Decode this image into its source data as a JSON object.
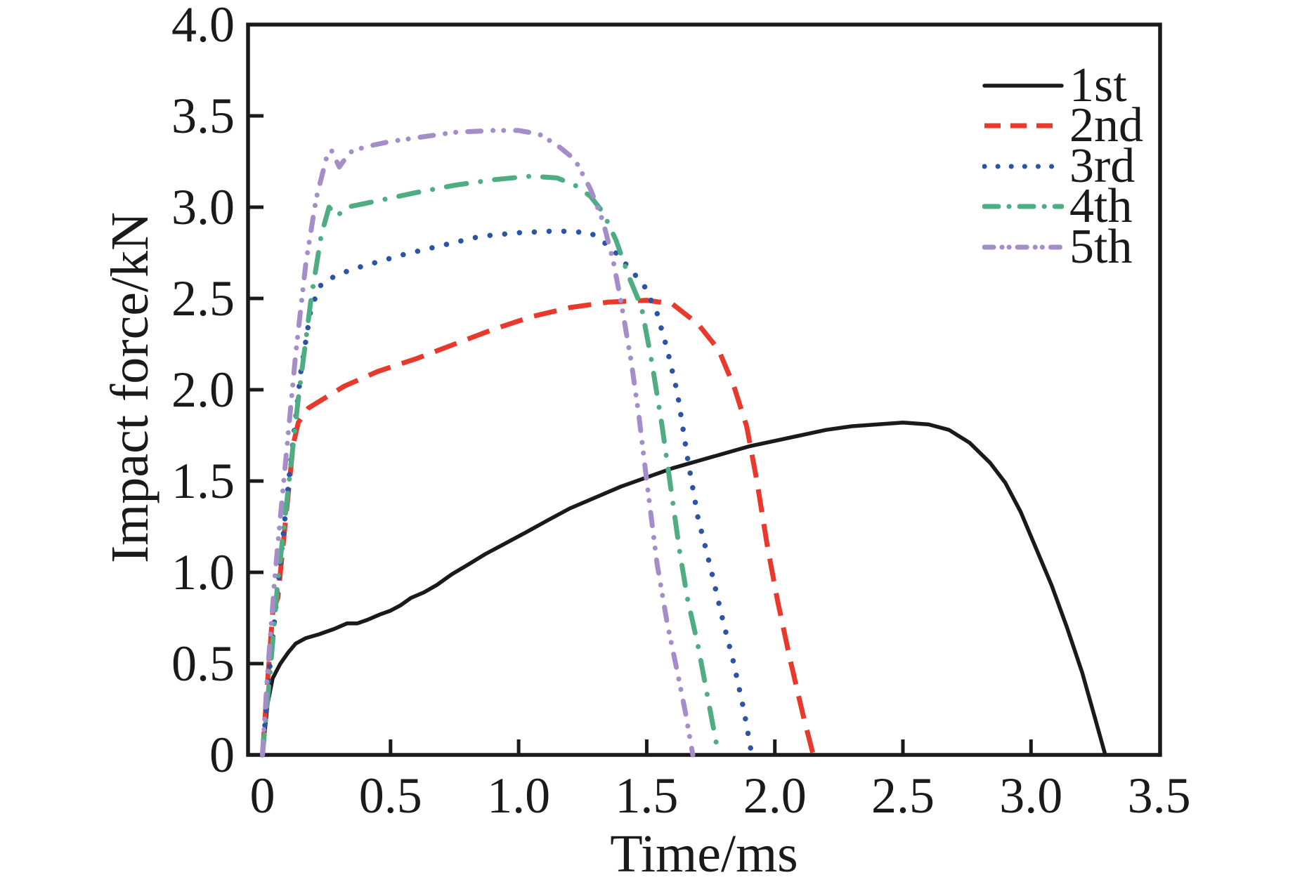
{
  "figure": {
    "background": "#ffffff",
    "frame_color": "#1a1a1a"
  },
  "axes": {
    "x_ticks": [
      "0",
      "0.5",
      "1.0",
      "1.5",
      "2.0",
      "2.5",
      "3.0",
      "3.5"
    ],
    "x_tick_values": [
      0,
      0.5,
      1.0,
      1.5,
      2.0,
      2.5,
      3.0,
      3.5
    ],
    "y_ticks": [
      "0",
      "0.5",
      "1.0",
      "1.5",
      "2.0",
      "2.5",
      "3.0",
      "3.5",
      "4.0"
    ],
    "y_tick_values": [
      0,
      0.5,
      1.0,
      1.5,
      2.0,
      2.5,
      3.0,
      3.5,
      4.0
    ]
  },
  "chart_data": {
    "type": "line",
    "title": "",
    "xlabel": "Time/ms",
    "ylabel": "Impact force/kN",
    "xlim": [
      -0.06,
      3.5
    ],
    "ylim": [
      0,
      4.0
    ],
    "grid": false,
    "legend_position": "upper right",
    "series": [
      {
        "name": "1st",
        "color": "#1a1a1a",
        "style": "solid",
        "peak_kN": 1.82,
        "end_ms": 3.29,
        "points": [
          [
            0,
            0
          ],
          [
            0.02,
            0.28
          ],
          [
            0.04,
            0.42
          ],
          [
            0.07,
            0.5
          ],
          [
            0.1,
            0.56
          ],
          [
            0.13,
            0.61
          ],
          [
            0.17,
            0.64
          ],
          [
            0.22,
            0.66
          ],
          [
            0.28,
            0.69
          ],
          [
            0.33,
            0.72
          ],
          [
            0.37,
            0.72
          ],
          [
            0.41,
            0.74
          ],
          [
            0.46,
            0.77
          ],
          [
            0.5,
            0.79
          ],
          [
            0.54,
            0.82
          ],
          [
            0.58,
            0.86
          ],
          [
            0.63,
            0.89
          ],
          [
            0.68,
            0.93
          ],
          [
            0.74,
            0.99
          ],
          [
            0.8,
            1.04
          ],
          [
            0.87,
            1.1
          ],
          [
            0.95,
            1.16
          ],
          [
            1.03,
            1.22
          ],
          [
            1.12,
            1.29
          ],
          [
            1.2,
            1.35
          ],
          [
            1.3,
            1.41
          ],
          [
            1.4,
            1.47
          ],
          [
            1.5,
            1.52
          ],
          [
            1.6,
            1.57
          ],
          [
            1.7,
            1.61
          ],
          [
            1.8,
            1.65
          ],
          [
            1.9,
            1.69
          ],
          [
            2.0,
            1.72
          ],
          [
            2.1,
            1.75
          ],
          [
            2.2,
            1.78
          ],
          [
            2.3,
            1.8
          ],
          [
            2.4,
            1.81
          ],
          [
            2.5,
            1.82
          ],
          [
            2.6,
            1.81
          ],
          [
            2.68,
            1.78
          ],
          [
            2.76,
            1.71
          ],
          [
            2.84,
            1.6
          ],
          [
            2.9,
            1.49
          ],
          [
            2.96,
            1.33
          ],
          [
            3.02,
            1.13
          ],
          [
            3.08,
            0.93
          ],
          [
            3.14,
            0.7
          ],
          [
            3.2,
            0.45
          ],
          [
            3.25,
            0.2
          ],
          [
            3.29,
            0
          ]
        ]
      },
      {
        "name": "2nd",
        "color": "#e8392c",
        "style": "dashed",
        "peak_kN": 2.49,
        "end_ms": 2.15,
        "points": [
          [
            0,
            0
          ],
          [
            0.02,
            0.4
          ],
          [
            0.04,
            0.78
          ],
          [
            0.06,
            0.86
          ],
          [
            0.09,
            1.28
          ],
          [
            0.12,
            1.7
          ],
          [
            0.14,
            1.82
          ],
          [
            0.18,
            1.9
          ],
          [
            0.25,
            1.96
          ],
          [
            0.32,
            2.02
          ],
          [
            0.45,
            2.1
          ],
          [
            0.6,
            2.17
          ],
          [
            0.75,
            2.25
          ],
          [
            0.9,
            2.33
          ],
          [
            1.05,
            2.4
          ],
          [
            1.2,
            2.45
          ],
          [
            1.35,
            2.48
          ],
          [
            1.5,
            2.49
          ],
          [
            1.6,
            2.47
          ],
          [
            1.7,
            2.36
          ],
          [
            1.78,
            2.22
          ],
          [
            1.84,
            2.02
          ],
          [
            1.89,
            1.8
          ],
          [
            1.93,
            1.5
          ],
          [
            1.97,
            1.15
          ],
          [
            2.01,
            0.85
          ],
          [
            2.06,
            0.52
          ],
          [
            2.11,
            0.22
          ],
          [
            2.15,
            0
          ]
        ]
      },
      {
        "name": "3rd",
        "color": "#2b54a5",
        "style": "dotted",
        "peak_kN": 2.87,
        "end_ms": 1.91,
        "points": [
          [
            0,
            0
          ],
          [
            0.03,
            0.5
          ],
          [
            0.07,
            1.05
          ],
          [
            0.11,
            1.6
          ],
          [
            0.15,
            2.1
          ],
          [
            0.19,
            2.45
          ],
          [
            0.23,
            2.58
          ],
          [
            0.28,
            2.62
          ],
          [
            0.35,
            2.66
          ],
          [
            0.45,
            2.7
          ],
          [
            0.55,
            2.74
          ],
          [
            0.7,
            2.79
          ],
          [
            0.85,
            2.84
          ],
          [
            1.0,
            2.86
          ],
          [
            1.15,
            2.87
          ],
          [
            1.28,
            2.86
          ],
          [
            1.36,
            2.78
          ],
          [
            1.43,
            2.67
          ],
          [
            1.49,
            2.57
          ],
          [
            1.54,
            2.42
          ],
          [
            1.58,
            2.22
          ],
          [
            1.62,
            1.98
          ],
          [
            1.66,
            1.62
          ],
          [
            1.7,
            1.3
          ],
          [
            1.75,
            1.02
          ],
          [
            1.8,
            0.72
          ],
          [
            1.84,
            0.5
          ],
          [
            1.88,
            0.24
          ],
          [
            1.91,
            0
          ]
        ]
      },
      {
        "name": "4th",
        "color": "#4ead82",
        "style": "dashdot",
        "peak_kN": 3.17,
        "end_ms": 1.78,
        "points": [
          [
            0,
            0
          ],
          [
            0.03,
            0.45
          ],
          [
            0.06,
            0.95
          ],
          [
            0.1,
            1.45
          ],
          [
            0.14,
            1.95
          ],
          [
            0.19,
            2.5
          ],
          [
            0.23,
            2.85
          ],
          [
            0.26,
            3.0
          ],
          [
            0.29,
            2.95
          ],
          [
            0.33,
            3.0
          ],
          [
            0.4,
            3.02
          ],
          [
            0.5,
            3.05
          ],
          [
            0.6,
            3.08
          ],
          [
            0.75,
            3.12
          ],
          [
            0.9,
            3.15
          ],
          [
            1.05,
            3.17
          ],
          [
            1.15,
            3.16
          ],
          [
            1.22,
            3.12
          ],
          [
            1.28,
            3.06
          ],
          [
            1.33,
            2.97
          ],
          [
            1.38,
            2.82
          ],
          [
            1.43,
            2.62
          ],
          [
            1.48,
            2.45
          ],
          [
            1.52,
            2.15
          ],
          [
            1.56,
            1.8
          ],
          [
            1.6,
            1.4
          ],
          [
            1.63,
            1.1
          ],
          [
            1.66,
            0.85
          ],
          [
            1.7,
            0.6
          ],
          [
            1.74,
            0.3
          ],
          [
            1.78,
            0
          ]
        ]
      },
      {
        "name": "5th",
        "color": "#a48dc9",
        "style": "dashdotdot",
        "peak_kN": 3.42,
        "end_ms": 1.68,
        "points": [
          [
            0,
            0
          ],
          [
            0.02,
            0.45
          ],
          [
            0.05,
            1.0
          ],
          [
            0.09,
            1.6
          ],
          [
            0.13,
            2.2
          ],
          [
            0.17,
            2.7
          ],
          [
            0.21,
            3.05
          ],
          [
            0.25,
            3.27
          ],
          [
            0.27,
            3.31
          ],
          [
            0.3,
            3.22
          ],
          [
            0.34,
            3.3
          ],
          [
            0.4,
            3.33
          ],
          [
            0.5,
            3.36
          ],
          [
            0.6,
            3.38
          ],
          [
            0.75,
            3.41
          ],
          [
            0.9,
            3.42
          ],
          [
            1.0,
            3.42
          ],
          [
            1.08,
            3.4
          ],
          [
            1.15,
            3.34
          ],
          [
            1.22,
            3.26
          ],
          [
            1.28,
            3.1
          ],
          [
            1.33,
            2.92
          ],
          [
            1.37,
            2.7
          ],
          [
            1.4,
            2.48
          ],
          [
            1.44,
            2.15
          ],
          [
            1.47,
            1.85
          ],
          [
            1.5,
            1.5
          ],
          [
            1.54,
            1.05
          ],
          [
            1.58,
            0.72
          ],
          [
            1.62,
            0.45
          ],
          [
            1.65,
            0.24
          ],
          [
            1.68,
            0
          ]
        ]
      }
    ]
  }
}
